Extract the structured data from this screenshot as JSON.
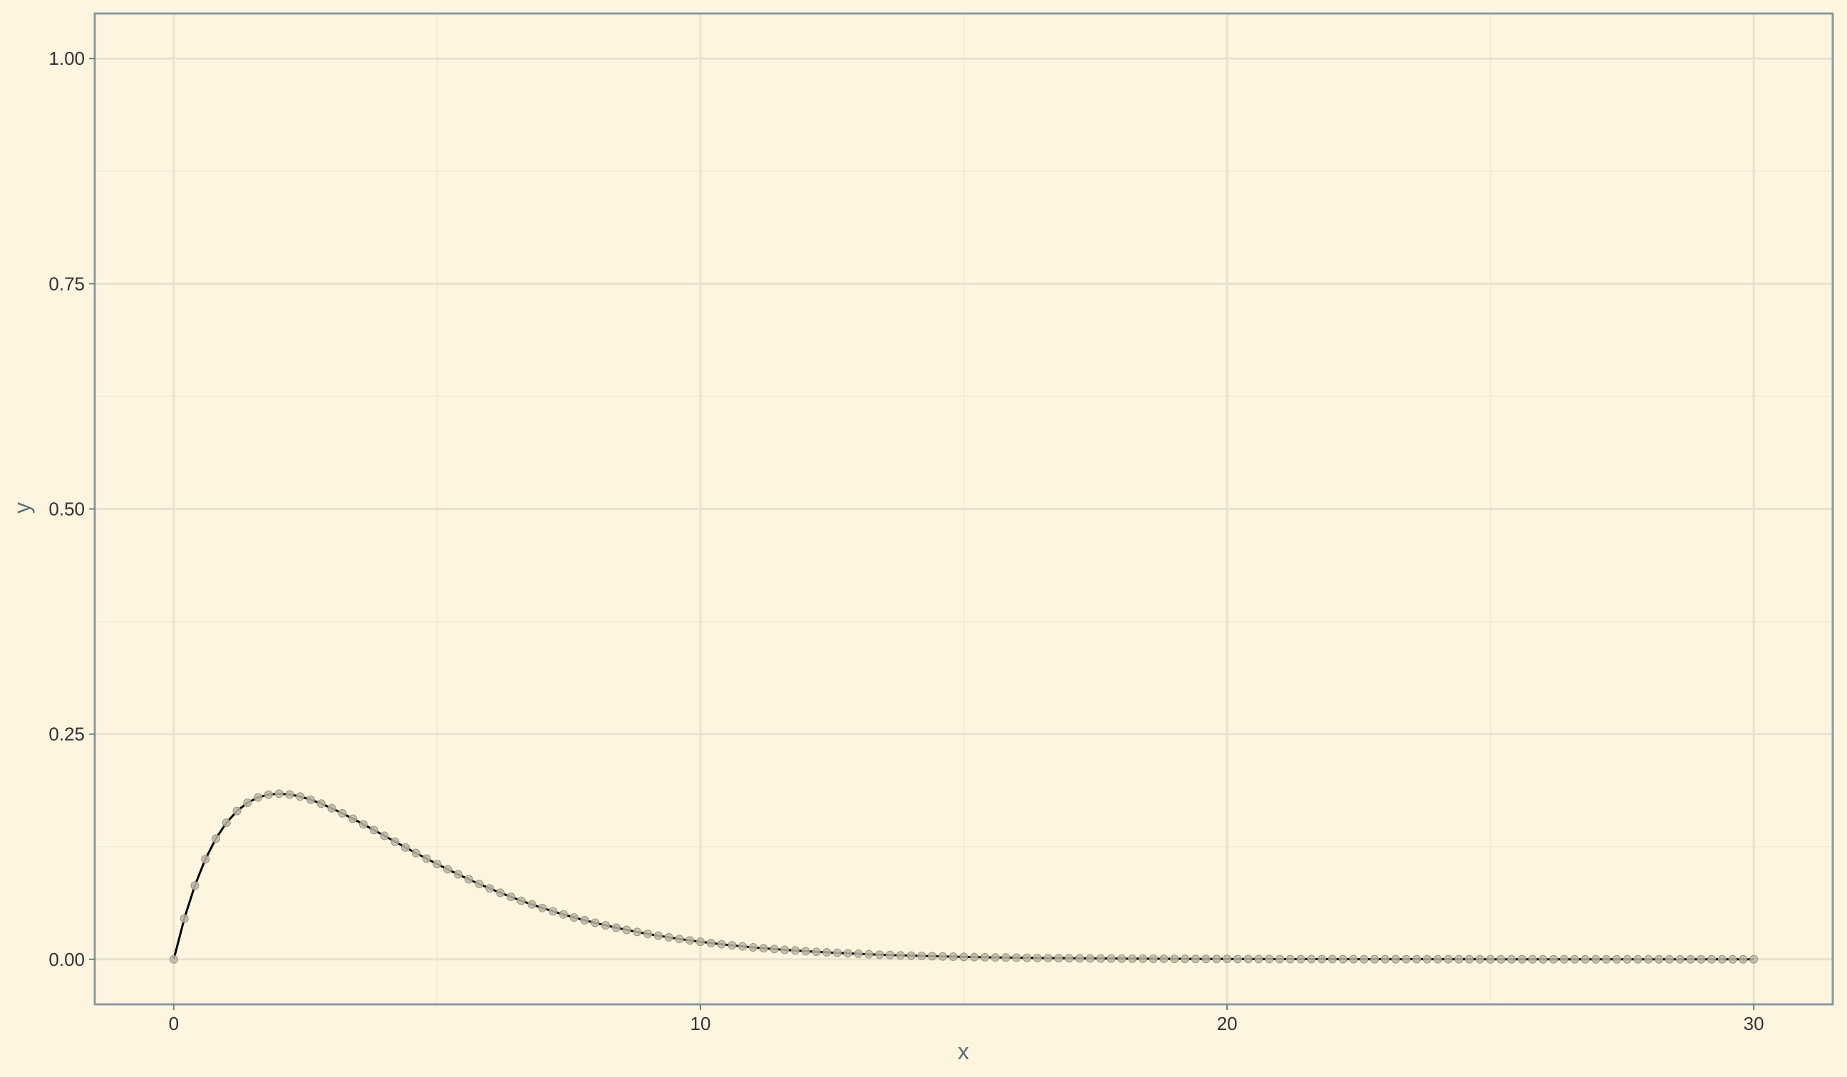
{
  "chart_data": {
    "type": "line",
    "title": "",
    "xlabel": "x",
    "ylabel": "y",
    "xlim": [
      -1.5,
      31.5
    ],
    "ylim": [
      -0.05,
      1.05
    ],
    "x_ticks": [
      0,
      10,
      20,
      30
    ],
    "x_tick_labels": [
      "0",
      "10",
      "20",
      "30"
    ],
    "y_ticks": [
      0,
      0.25,
      0.5,
      0.75,
      1.0
    ],
    "y_tick_labels": [
      "0.00",
      "0.25",
      "0.50",
      "0.75",
      "1.00"
    ],
    "grid": true,
    "legend": "none",
    "colors": {
      "background": "#fdf5e0",
      "panel_border": "#8a9a9c",
      "grid_major": "#e8e2cf",
      "grid_minor": "#efe9d6",
      "line": "#000000",
      "points": "#bdb6a4"
    },
    "series": [
      {
        "x": [
          0,
          0.2,
          0.4,
          0.6,
          0.8,
          1.0,
          1.2,
          1.4,
          1.6,
          1.8,
          2.0,
          2.2,
          2.4,
          2.6,
          2.8,
          3.0,
          3.2,
          3.4,
          3.6,
          3.8,
          4.0,
          4.2,
          4.4,
          4.6,
          4.8,
          5.0,
          5.2,
          5.4,
          5.6,
          5.8,
          6.0,
          6.2,
          6.4,
          6.6,
          6.8,
          7.0,
          7.2,
          7.4,
          7.6,
          7.8,
          8.0,
          8.2,
          8.4,
          8.6,
          8.8,
          9.0,
          9.2,
          9.4,
          9.6,
          9.8,
          10.0,
          10.2,
          10.4,
          10.6,
          10.8,
          11.0,
          11.2,
          11.4,
          11.6,
          11.8,
          12.0,
          12.2,
          12.4,
          12.6,
          12.8,
          13.0,
          13.2,
          13.4,
          13.6,
          13.8,
          14.0,
          14.2,
          14.4,
          14.6,
          14.8,
          15.0,
          15.2,
          15.4,
          15.6,
          15.8,
          16.0,
          16.2,
          16.4,
          16.6,
          16.8,
          17.0,
          17.2,
          17.4,
          17.6,
          17.8,
          18.0,
          18.2,
          18.4,
          18.6,
          18.8,
          19.0,
          19.2,
          19.4,
          19.6,
          19.8,
          20.0,
          20.2,
          20.4,
          20.6,
          20.8,
          21.0,
          21.2,
          21.4,
          21.6,
          21.8,
          22.0,
          22.2,
          22.4,
          22.6,
          22.8,
          23.0,
          23.2,
          23.4,
          23.6,
          23.8,
          24.0,
          24.2,
          24.4,
          24.6,
          24.8,
          25.0,
          25.2,
          25.4,
          25.6,
          25.8,
          26.0,
          26.2,
          26.4,
          26.6,
          26.8,
          27.0,
          27.2,
          27.4,
          27.6,
          27.8,
          28.0,
          28.2,
          28.4,
          28.6,
          28.8,
          29.0,
          29.2,
          29.4,
          29.6,
          29.8,
          30.0
        ],
        "y": [
          0.0,
          0.0452,
          0.0819,
          0.1111,
          0.1341,
          0.1516,
          0.1646,
          0.1738,
          0.1797,
          0.1829,
          0.1839,
          0.183,
          0.1807,
          0.1772,
          0.1728,
          0.1677,
          0.1621,
          0.1561,
          0.1499,
          0.1435,
          0.1371,
          0.1306,
          0.1242,
          0.1179,
          0.1118,
          0.1058,
          0.0999,
          0.0943,
          0.0889,
          0.0836,
          0.0787,
          0.0739,
          0.0694,
          0.065,
          0.0609,
          0.057,
          0.0533,
          0.0498,
          0.0465,
          0.0434,
          0.0405,
          0.0377,
          0.0351,
          0.0327,
          0.0304,
          0.0282,
          0.0262,
          0.0244,
          0.0226,
          0.021,
          0.0195,
          0.0181,
          0.0167,
          0.0155,
          0.0144,
          0.0133,
          0.0123,
          0.0114,
          0.0105,
          0.0098,
          0.009,
          0.0083,
          0.0077,
          0.0071,
          0.0066,
          0.0061,
          0.0056,
          0.0052,
          0.0048,
          0.0044,
          0.0041,
          0.0038,
          0.0035,
          0.0032,
          0.003,
          0.0027,
          0.0025,
          0.0023,
          0.0021,
          0.002,
          0.0018,
          0.0017,
          0.0015,
          0.0014,
          0.0013,
          0.0012,
          0.0011,
          0.001,
          0.0009,
          0.0009,
          0.0008,
          0.0007,
          0.0007,
          0.0006,
          0.0006,
          0.0005,
          0.0005,
          0.0004,
          0.0004,
          0.0004,
          0.0004,
          0.0003,
          0.0003,
          0.0003,
          0.0003,
          0.0002,
          0.0002,
          0.0002,
          0.0002,
          0.0002,
          0.0002,
          0.0001,
          0.0001,
          0.0001,
          0.0001,
          0.0001,
          0.0001,
          0.0001,
          0.0001,
          0.0001,
          0.0001,
          0.0001,
          0.0001,
          0.0001,
          0.0001,
          0.0,
          0.0,
          0.0,
          0.0,
          0.0,
          0.0,
          0.0,
          0.0,
          0.0,
          0.0,
          0.0,
          0.0,
          0.0,
          0.0,
          0.0,
          0.0,
          0.0,
          0.0,
          0.0,
          0.0,
          0.0,
          0.0,
          0.0,
          0.0,
          0.0,
          0.0
        ]
      }
    ]
  }
}
